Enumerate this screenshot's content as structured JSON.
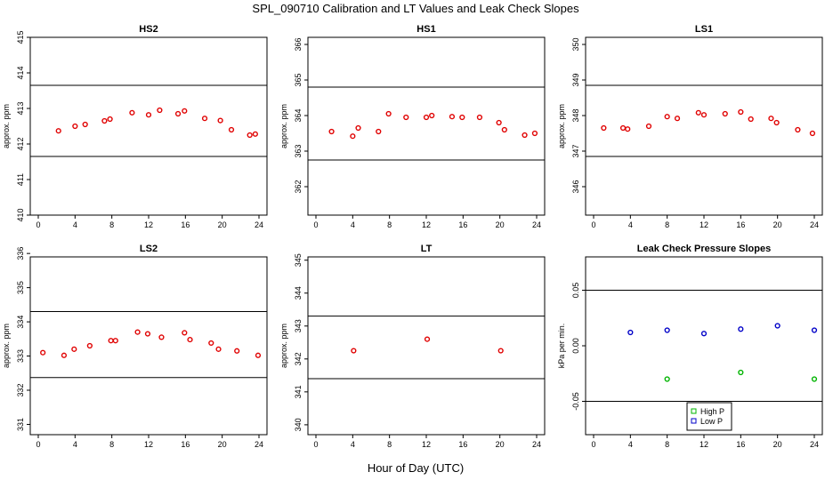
{
  "title": "SPL_090710  Calibration and LT Values and Leak Check Slopes",
  "xlabel": "Hour of Day (UTC)",
  "colors": {
    "red": "#e00000",
    "green": "#00b400",
    "blue": "#0000c8",
    "axis": "#000000"
  },
  "chart_data": [
    {
      "type": "scatter",
      "title": "HS2",
      "ylabel": "approx. ppm",
      "xlim": [
        0,
        24
      ],
      "ylim": [
        410,
        415
      ],
      "xticks": [
        "0",
        "4",
        "8",
        "12",
        "16",
        "20",
        "24"
      ],
      "yticks": [
        "410",
        "411",
        "412",
        "413",
        "414",
        "415"
      ],
      "reference_lines": [
        413.65,
        411.65
      ],
      "series": [
        {
          "name": "HS2",
          "color": "#e00000",
          "x": [
            2.2,
            4.0,
            5.1,
            7.2,
            7.8,
            10.2,
            12.0,
            13.2,
            15.2,
            15.9,
            18.1,
            19.8,
            21.0,
            23.0,
            23.6
          ],
          "y": [
            412.37,
            412.5,
            412.55,
            412.65,
            412.7,
            412.88,
            412.82,
            412.95,
            412.85,
            412.93,
            412.72,
            412.66,
            412.4,
            412.25,
            412.28
          ]
        }
      ]
    },
    {
      "type": "scatter",
      "title": "HS1",
      "ylabel": "approx. ppm",
      "xlim": [
        0,
        24
      ],
      "ylim": [
        361.2,
        366.2
      ],
      "xticks": [
        "0",
        "4",
        "8",
        "12",
        "16",
        "20",
        "24"
      ],
      "yticks": [
        "362",
        "363",
        "364",
        "365",
        "366"
      ],
      "reference_lines": [
        364.8,
        362.75
      ],
      "series": [
        {
          "name": "HS1",
          "color": "#e00000",
          "x": [
            1.7,
            4.0,
            4.6,
            6.8,
            7.9,
            9.8,
            12.0,
            12.6,
            14.8,
            15.9,
            17.8,
            19.9,
            20.5,
            22.7,
            23.8
          ],
          "y": [
            363.55,
            363.42,
            363.65,
            363.55,
            364.05,
            363.95,
            363.95,
            364.0,
            363.97,
            363.95,
            363.95,
            363.8,
            363.6,
            363.45,
            363.5
          ]
        }
      ]
    },
    {
      "type": "scatter",
      "title": "LS1",
      "ylabel": "approx. ppm",
      "xlim": [
        0,
        24
      ],
      "ylim": [
        345.2,
        350.2
      ],
      "xticks": [
        "0",
        "4",
        "8",
        "12",
        "16",
        "20",
        "24"
      ],
      "yticks": [
        "346",
        "347",
        "348",
        "349",
        "350"
      ],
      "reference_lines": [
        348.85,
        346.85
      ],
      "series": [
        {
          "name": "LS1",
          "color": "#e00000",
          "x": [
            1.1,
            3.2,
            3.7,
            6.0,
            8.0,
            9.1,
            11.4,
            12.0,
            14.3,
            16.0,
            17.1,
            19.3,
            19.9,
            22.2,
            23.8
          ],
          "y": [
            347.65,
            347.65,
            347.62,
            347.7,
            347.97,
            347.92,
            348.08,
            348.02,
            348.05,
            348.1,
            347.9,
            347.92,
            347.8,
            347.6,
            347.5
          ]
        }
      ]
    },
    {
      "type": "scatter",
      "title": "LS2",
      "ylabel": "approx. ppm",
      "xlim": [
        0,
        24
      ],
      "ylim": [
        330.7,
        335.9
      ],
      "xticks": [
        "0",
        "4",
        "8",
        "12",
        "16",
        "20",
        "24"
      ],
      "yticks": [
        "331",
        "332",
        "333",
        "334",
        "335",
        "336"
      ],
      "reference_lines": [
        334.3,
        332.37
      ],
      "series": [
        {
          "name": "LS2",
          "color": "#e00000",
          "x": [
            0.5,
            2.8,
            3.9,
            5.6,
            7.9,
            8.4,
            10.8,
            11.9,
            13.4,
            15.9,
            16.5,
            18.8,
            19.6,
            21.6,
            23.9
          ],
          "y": [
            333.1,
            333.02,
            333.2,
            333.3,
            333.45,
            333.45,
            333.7,
            333.65,
            333.55,
            333.68,
            333.48,
            333.38,
            333.2,
            333.15,
            333.02
          ]
        }
      ]
    },
    {
      "type": "scatter",
      "title": "LT",
      "ylabel": "approx. ppm",
      "xlim": [
        0,
        24
      ],
      "ylim": [
        339.7,
        345.1
      ],
      "xticks": [
        "0",
        "4",
        "8",
        "12",
        "16",
        "20",
        "24"
      ],
      "yticks": [
        "340",
        "341",
        "342",
        "343",
        "344",
        "345"
      ],
      "reference_lines": [
        343.3,
        341.4
      ],
      "series": [
        {
          "name": "LT",
          "color": "#e00000",
          "x": [
            4.1,
            12.1,
            20.1
          ],
          "y": [
            342.25,
            342.6,
            342.25
          ]
        }
      ]
    },
    {
      "type": "scatter",
      "title": "Leak Check Pressure Slopes",
      "ylabel": "kPa per min.",
      "xlim": [
        0,
        24
      ],
      "ylim": [
        -0.08,
        0.08
      ],
      "xticks": [
        "0",
        "4",
        "8",
        "12",
        "16",
        "20",
        "24"
      ],
      "yticks": [
        "-0.05",
        "0.00",
        "0.05"
      ],
      "reference_lines": [
        0.05,
        -0.05
      ],
      "legend": {
        "position": "bottom-center",
        "entries": [
          {
            "label": "High P",
            "color": "#00b400"
          },
          {
            "label": "Low P",
            "color": "#0000c8"
          }
        ]
      },
      "series": [
        {
          "name": "High P",
          "color": "#00b400",
          "x": [
            8,
            16,
            24
          ],
          "y": [
            -0.03,
            -0.024,
            -0.03
          ]
        },
        {
          "name": "Low P",
          "color": "#0000c8",
          "x": [
            4,
            8,
            12,
            16,
            20,
            24
          ],
          "y": [
            0.012,
            0.014,
            0.011,
            0.015,
            0.018,
            0.014
          ]
        }
      ]
    }
  ]
}
